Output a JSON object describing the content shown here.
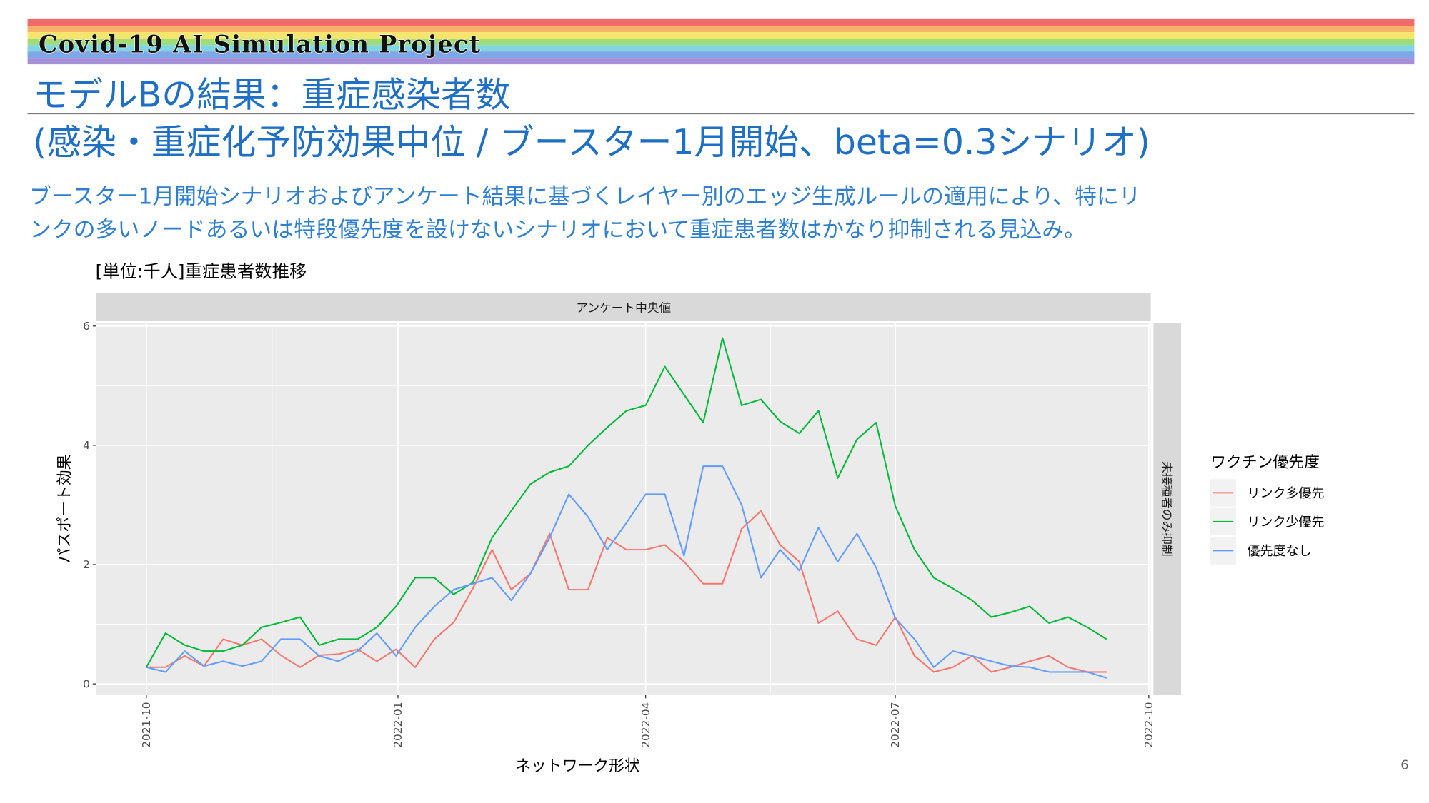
{
  "header": {
    "title": "Covid-19 AI Simulation Project"
  },
  "title": [
    "モデルBの結果：重症感染者数",
    "(感染・重症化予防効果中位 / ブースター1月開始、beta=0.3シナリオ)"
  ],
  "subtitle": [
    "ブースター1月開始シナリオおよびアンケート結果に基づくレイヤー別のエッジ生成ルールの適用により、特にリ",
    "ンクの多いノードあるいは特段優先度を設けないシナリオにおいて重症患者数はかなり抑制される見込み。"
  ],
  "page_number": "6",
  "chart_data": {
    "type": "line",
    "title": "[単位:千人]重症患者数推移",
    "facet_top": "アンケート中央値",
    "facet_right": "未接種者のみ抑制",
    "x_label": "ネットワーク形状",
    "y_label": "パスポート効果",
    "legend_title": "ワクチン優先度",
    "xlim": [
      -2.6,
      52.3
    ],
    "xticks": [
      {
        "value": 0,
        "label": "2021-10"
      },
      {
        "value": 13.1,
        "label": "2022-01"
      },
      {
        "value": 26,
        "label": "2022-04"
      },
      {
        "value": 39,
        "label": "2022-07"
      },
      {
        "value": 52.2,
        "label": "2022-10"
      }
    ],
    "ylim": [
      -0.18,
      6.05
    ],
    "yticks": [
      0,
      2,
      4,
      6
    ],
    "grid": true,
    "series": [
      {
        "name": "リンク多優先",
        "color": "#f8766d",
        "values": [
          0.28,
          0.28,
          0.47,
          0.3,
          0.75,
          0.65,
          0.75,
          0.48,
          0.28,
          0.48,
          0.5,
          0.58,
          0.38,
          0.58,
          0.28,
          0.75,
          1.03,
          1.6,
          2.25,
          1.58,
          1.85,
          2.52,
          1.58,
          1.58,
          2.45,
          2.25,
          2.25,
          2.33,
          2.05,
          1.68,
          1.68,
          2.6,
          2.9,
          2.33,
          2.05,
          1.02,
          1.22,
          0.75,
          0.65,
          1.12,
          0.47,
          0.2,
          0.28,
          0.47,
          0.2,
          0.28,
          0.38,
          0.47,
          0.28,
          0.2,
          0.2
        ]
      },
      {
        "name": "リンク少優先",
        "color": "#00ba38",
        "values": [
          0.28,
          0.85,
          0.65,
          0.55,
          0.55,
          0.65,
          0.95,
          1.03,
          1.12,
          0.65,
          0.75,
          0.75,
          0.95,
          1.3,
          1.78,
          1.78,
          1.5,
          1.7,
          2.45,
          2.9,
          3.35,
          3.55,
          3.65,
          4.0,
          4.3,
          4.58,
          4.67,
          5.32,
          4.85,
          4.38,
          5.8,
          4.67,
          4.77,
          4.4,
          4.2,
          4.58,
          3.45,
          4.1,
          4.38,
          2.98,
          2.25,
          1.78,
          1.6,
          1.4,
          1.12,
          1.2,
          1.3,
          1.02,
          1.12,
          0.95,
          0.75
        ]
      },
      {
        "name": "優先度なし",
        "color": "#619cff",
        "values": [
          0.28,
          0.2,
          0.55,
          0.3,
          0.38,
          0.3,
          0.38,
          0.75,
          0.75,
          0.47,
          0.38,
          0.55,
          0.85,
          0.47,
          0.95,
          1.3,
          1.58,
          1.68,
          1.78,
          1.4,
          1.85,
          2.45,
          3.18,
          2.8,
          2.25,
          2.7,
          3.18,
          3.18,
          2.15,
          3.65,
          3.65,
          3.0,
          1.78,
          2.25,
          1.9,
          2.62,
          2.05,
          2.52,
          1.95,
          1.1,
          0.75,
          0.28,
          0.55,
          0.47,
          0.38,
          0.3,
          0.28,
          0.2,
          0.2,
          0.2,
          0.1
        ]
      }
    ]
  }
}
